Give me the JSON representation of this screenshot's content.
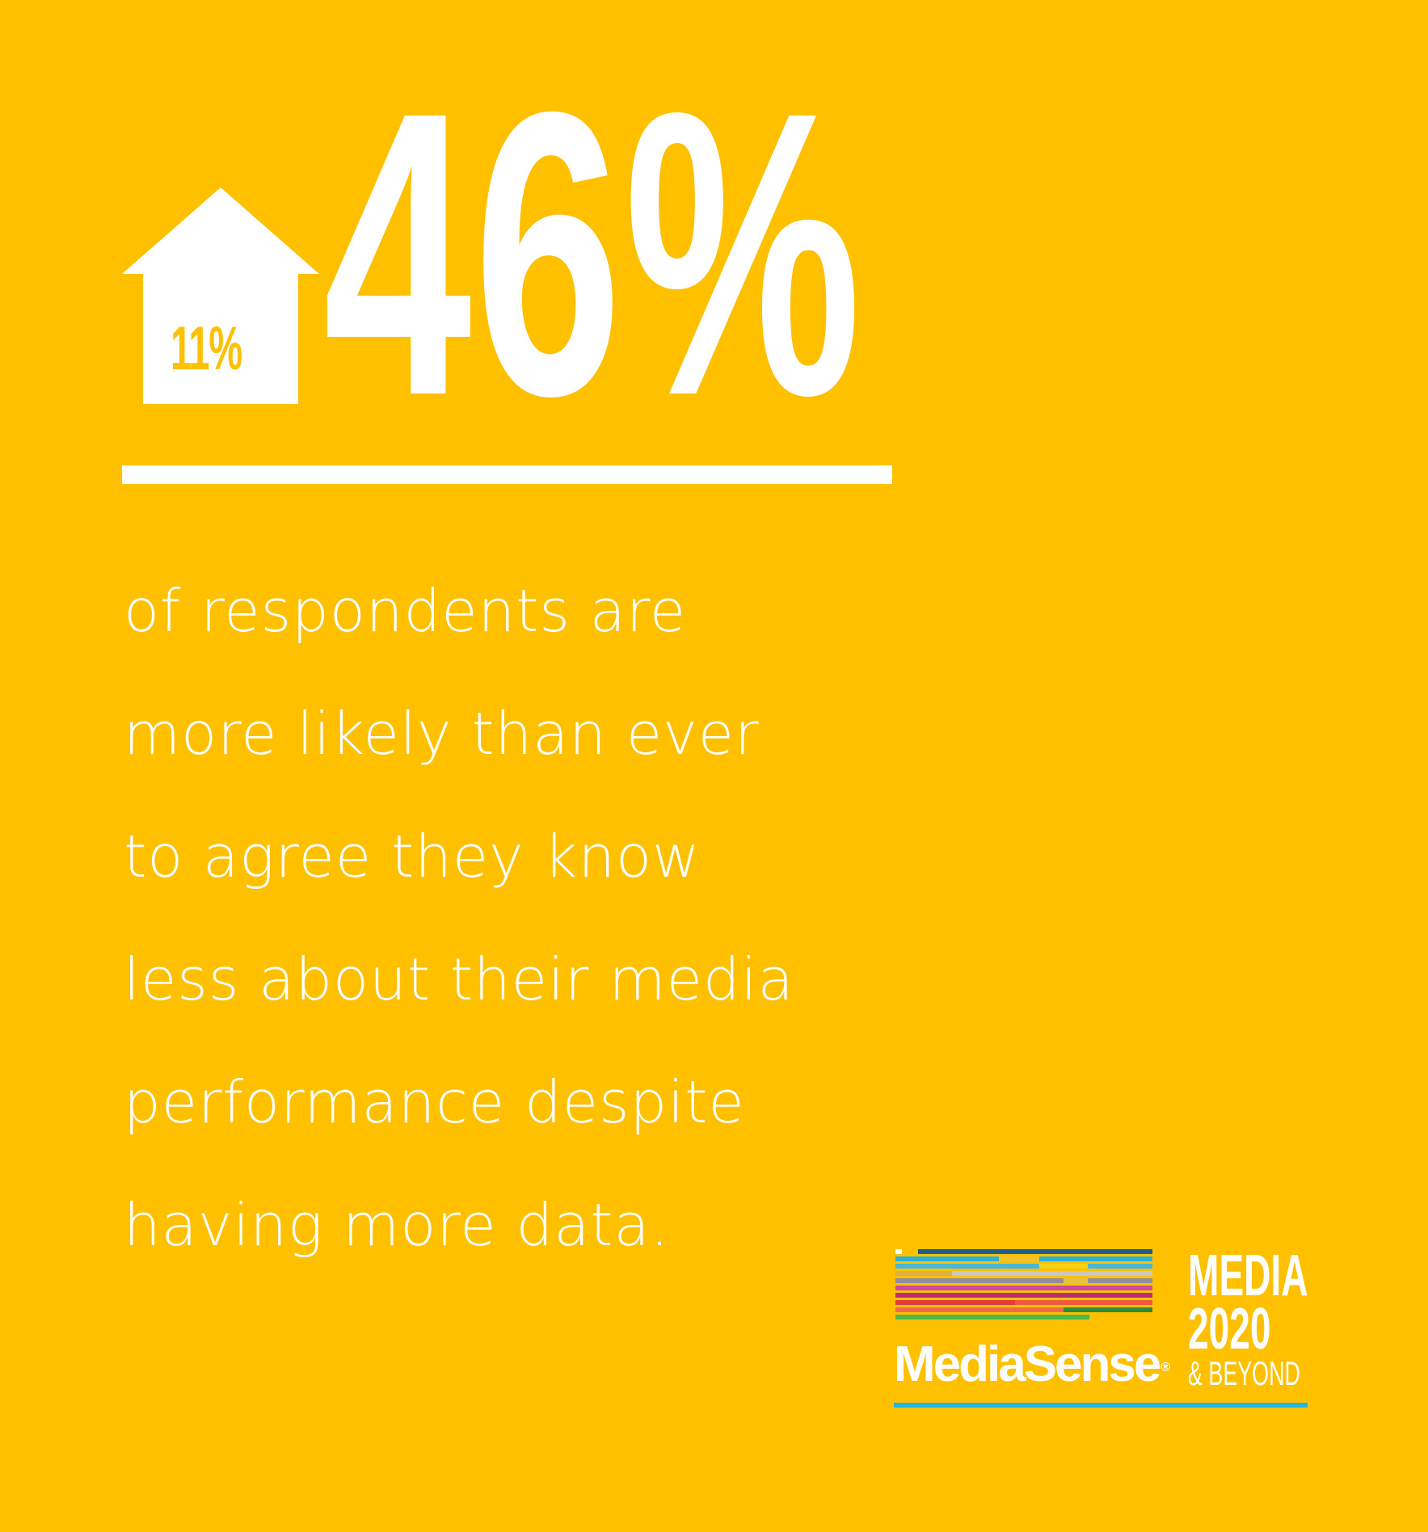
{
  "stat": {
    "house_value": "11%",
    "headline_value": "46%"
  },
  "description": {
    "lines": [
      "of respondents are",
      "more likely than ever",
      "to agree they know",
      "less about their media",
      "performance despite",
      "having more data."
    ]
  },
  "logo": {
    "brand_name": "MediaSense",
    "registered_mark": "®",
    "badge_line1": "MEDIA",
    "badge_line2": "2020",
    "badge_line3": "& BEYOND",
    "accent_color": "#1FB6DF"
  },
  "colors": {
    "background": "#FFC000",
    "foreground": "#FFFFFF"
  },
  "icons": {
    "house": "house-icon"
  }
}
